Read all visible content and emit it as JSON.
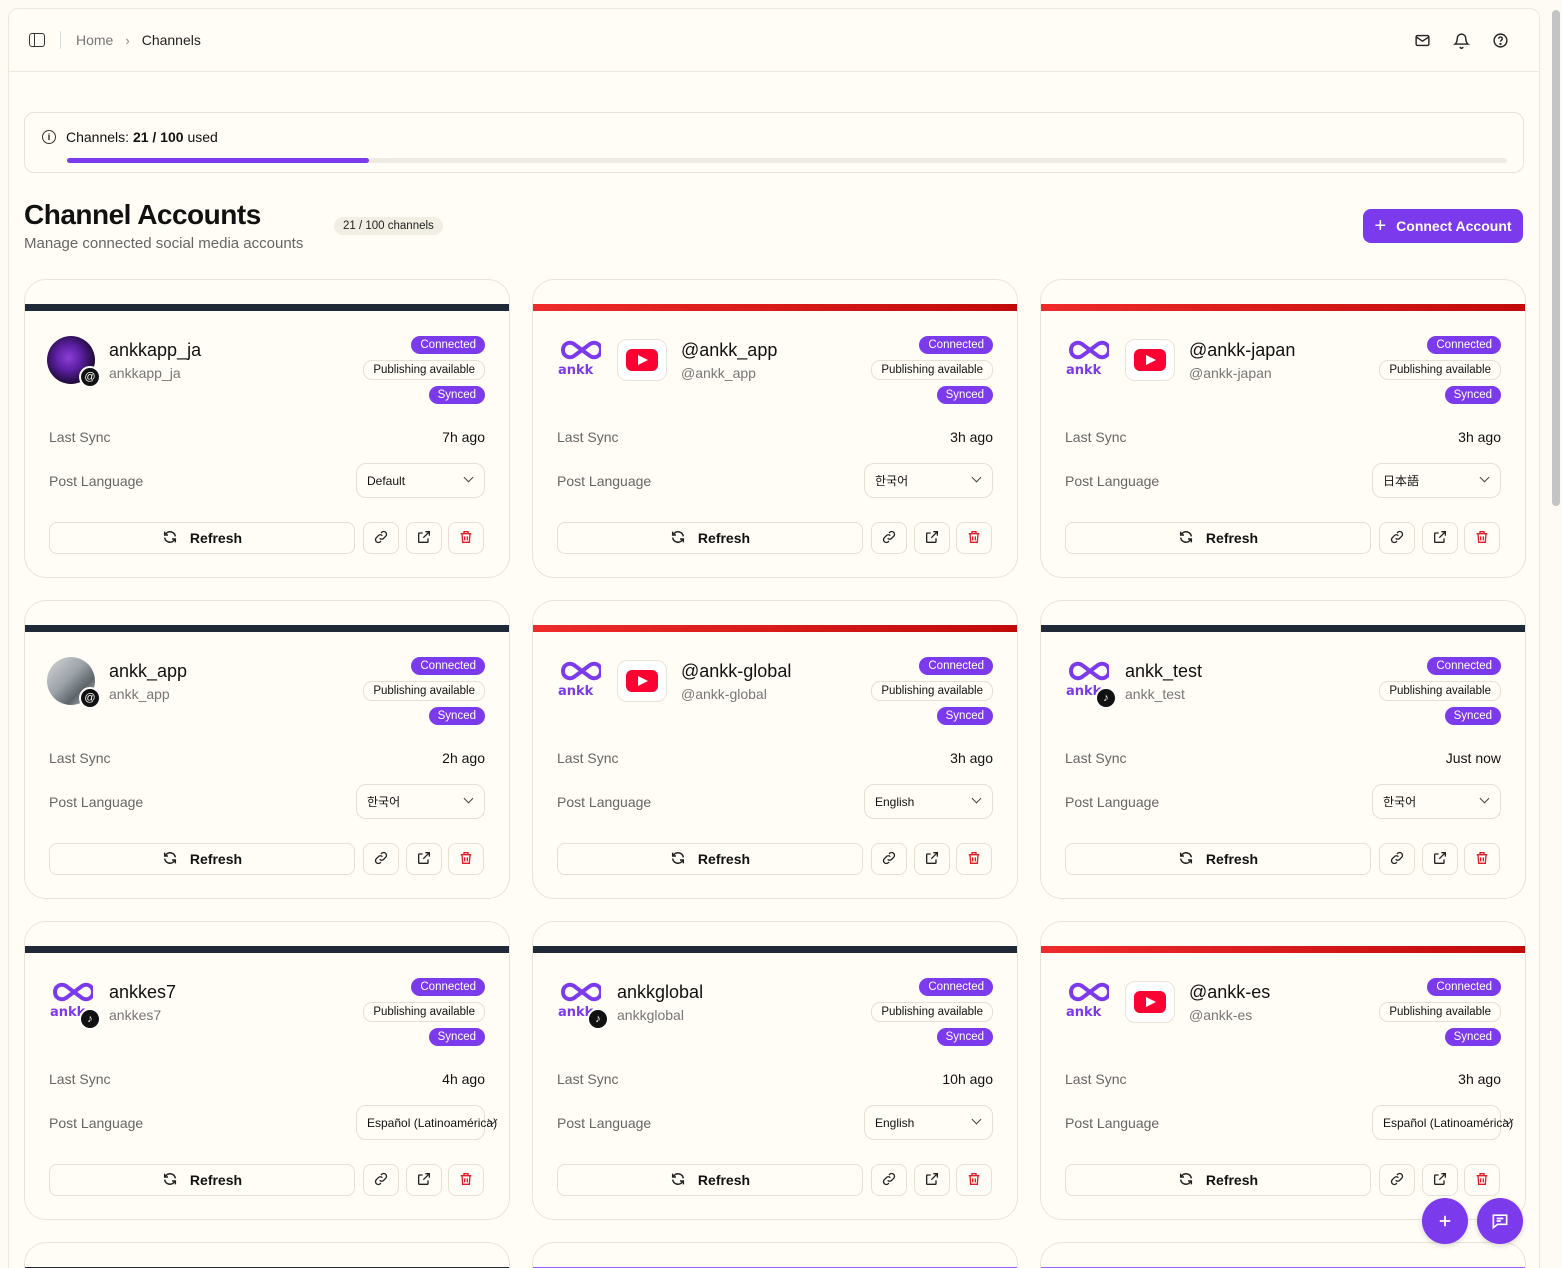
{
  "breadcrumb": {
    "home": "Home",
    "current": "Channels"
  },
  "usage": {
    "label": "Channels:",
    "count": "21 / 100",
    "suffix": "used",
    "fraction": 0.21
  },
  "header": {
    "title": "Channel Accounts",
    "subtitle": "Manage connected social media accounts",
    "count_badge": "21 / 100 channels",
    "connect_label": "Connect Account"
  },
  "labels": {
    "connected": "Connected",
    "publishing": "Publishing available",
    "synced": "Synced",
    "last_sync": "Last Sync",
    "post_language": "Post Language",
    "refresh": "Refresh"
  },
  "colors": {
    "accent": "#7c3aed",
    "youtube": "#ff0033",
    "threads_stripe": "#1f2937",
    "youtube_stripe": "#e11d1d"
  },
  "cards": [
    {
      "name": "ankkapp_ja",
      "handle": "ankkapp_ja",
      "platform": "threads",
      "avatar": "dark",
      "last_sync": "7h ago",
      "language": "Default"
    },
    {
      "name": "@ankk_app",
      "handle": "@ankk_app",
      "platform": "youtube",
      "avatar": "logo",
      "last_sync": "3h ago",
      "language": "한국어"
    },
    {
      "name": "@ankk-japan",
      "handle": "@ankk-japan",
      "platform": "youtube",
      "avatar": "logo",
      "last_sync": "3h ago",
      "language": "日本語"
    },
    {
      "name": "ankk_app",
      "handle": "ankk_app",
      "platform": "threads",
      "avatar": "photo",
      "last_sync": "2h ago",
      "language": "한국어"
    },
    {
      "name": "@ankk-global",
      "handle": "@ankk-global",
      "platform": "youtube",
      "avatar": "logo",
      "last_sync": "3h ago",
      "language": "English"
    },
    {
      "name": "ankk_test",
      "handle": "ankk_test",
      "platform": "tiktok",
      "avatar": "logo",
      "last_sync": "Just now",
      "language": "한국어"
    },
    {
      "name": "ankkes7",
      "handle": "ankkes7",
      "platform": "tiktok",
      "avatar": "logo",
      "last_sync": "4h ago",
      "language": "Español (Latinoamérica)"
    },
    {
      "name": "ankkglobal",
      "handle": "ankkglobal",
      "platform": "tiktok",
      "avatar": "logo",
      "last_sync": "10h ago",
      "language": "English"
    },
    {
      "name": "@ankk-es",
      "handle": "@ankk-es",
      "platform": "youtube",
      "avatar": "logo",
      "last_sync": "3h ago",
      "language": "Español (Latinoamérica)"
    }
  ],
  "logo_text": "ankk"
}
